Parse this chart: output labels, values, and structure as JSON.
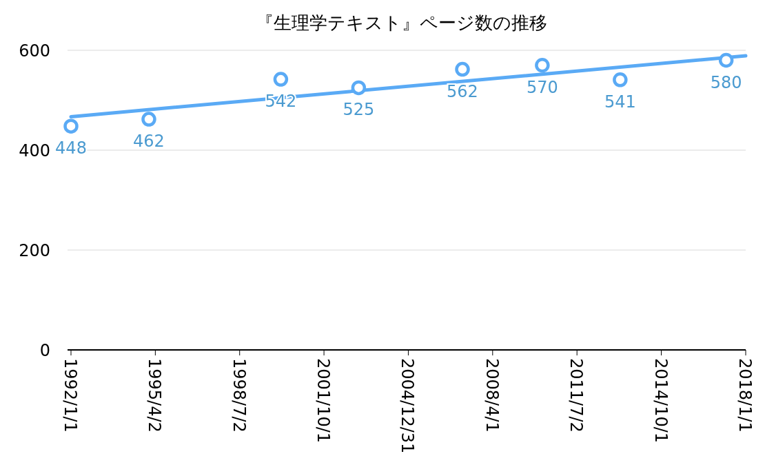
{
  "chart_data": {
    "type": "scatter",
    "title": "『生理学テキスト』ページ数の推移",
    "xlim": [
      "1992-01-01",
      "2018-01-01"
    ],
    "xticks": [
      {
        "value": "1992-01-01",
        "label": "1992/1/1"
      },
      {
        "value": "1995-04-02",
        "label": "1995/4/2"
      },
      {
        "value": "1998-07-02",
        "label": "1998/7/2"
      },
      {
        "value": "2001-10-01",
        "label": "2001/10/1"
      },
      {
        "value": "2004-12-31",
        "label": "2004/12/31"
      },
      {
        "value": "2008-04-01",
        "label": "2008/4/1"
      },
      {
        "value": "2011-07-02",
        "label": "2011/7/2"
      },
      {
        "value": "2014-10-01",
        "label": "2014/10/1"
      },
      {
        "value": "2018-01-01",
        "label": "2018/1/1"
      }
    ],
    "ylim": [
      0,
      600
    ],
    "yticks": [
      0,
      200,
      400,
      600
    ],
    "grid": "y",
    "series": [
      {
        "marker": "circle",
        "color": "#5aaaf5",
        "x": [
          "1992-01",
          "1995-01",
          "2000-02",
          "2003-02",
          "2007-02",
          "2010-03",
          "2013-03",
          "2017-04"
        ],
        "values": [
          448,
          462,
          542,
          525,
          562,
          570,
          541,
          580
        ],
        "value_labels": [
          "448",
          "462",
          "542",
          "525",
          "562",
          "570",
          "541",
          "580"
        ]
      },
      {
        "type": "line",
        "color": "#5aaaf5",
        "x": [
          "1992-01-01",
          "2018-01-01"
        ],
        "values": [
          467,
          589
        ]
      }
    ]
  }
}
